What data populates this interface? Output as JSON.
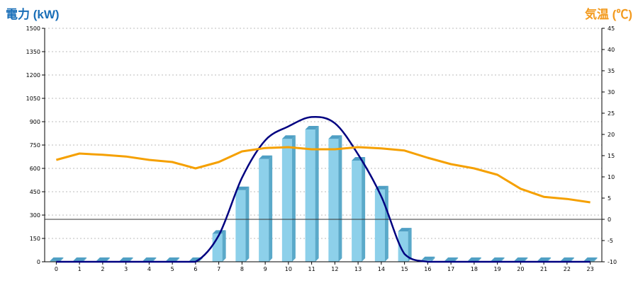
{
  "labels": {
    "left_title": "電力 (kW)",
    "right_title": "気温 (℃)"
  },
  "colors": {
    "bar_front": "#8dd0ea",
    "bar_side": "#5aa9c9",
    "bar_top": "#4f9fc4",
    "power_line": "#000080",
    "temp_line": "#f5a000",
    "grid": "#bbbbbb",
    "zero_line": "#333333"
  },
  "chart_data": {
    "type": "bar+line",
    "categories": [
      "0",
      "1",
      "2",
      "3",
      "4",
      "5",
      "6",
      "7",
      "8",
      "9",
      "10",
      "11",
      "12",
      "13",
      "14",
      "15",
      "16",
      "17",
      "18",
      "19",
      "20",
      "21",
      "22",
      "23"
    ],
    "y_left": {
      "label": "電力 (kW)",
      "min": 0,
      "max": 1500,
      "ticks": [
        0,
        150,
        300,
        450,
        600,
        750,
        900,
        1050,
        1200,
        1350,
        1500
      ]
    },
    "y_right": {
      "label": "気温 (℃)",
      "min": -10,
      "max": 45,
      "ticks": [
        -10,
        -5,
        0,
        5,
        10,
        15,
        20,
        25,
        30,
        35,
        40,
        45
      ]
    },
    "grid": true,
    "series": [
      {
        "type": "bar",
        "axis": "left",
        "values": [
          5,
          5,
          5,
          5,
          5,
          5,
          5,
          180,
          460,
          660,
          790,
          850,
          790,
          650,
          465,
          195,
          10,
          5,
          5,
          5,
          5,
          5,
          5,
          5
        ]
      },
      {
        "type": "line",
        "axis": "left",
        "smooth": true,
        "values": [
          0,
          0,
          0,
          0,
          0,
          0,
          0,
          170,
          540,
          780,
          870,
          930,
          890,
          690,
          420,
          50,
          0,
          0,
          0,
          0,
          0,
          0,
          0,
          0
        ]
      },
      {
        "type": "line",
        "axis": "right",
        "values": [
          14,
          15.5,
          15.2,
          14.8,
          14,
          13.5,
          12,
          13.5,
          16,
          16.8,
          17,
          16.5,
          16.5,
          17,
          16.7,
          16.2,
          14.5,
          13,
          12,
          10.5,
          7.2,
          5.3,
          4.8,
          4
        ]
      }
    ]
  }
}
